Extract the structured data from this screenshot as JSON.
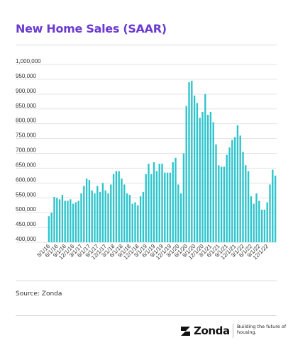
{
  "title": "New Home Sales (SAAR)",
  "source": "Source: Zonda",
  "brand": {
    "name": "Zonda",
    "tagline": "Building the future of housing."
  },
  "colors": {
    "title": "#6b3bd1",
    "bar": "#2ec4cc",
    "grid": "#e3e3e3",
    "axis_text": "#333333"
  },
  "chart_data": {
    "type": "bar",
    "ylim": [
      400000,
      1000000
    ],
    "yticks": [
      "1,000,000",
      "950,000",
      "900,000",
      "850,000",
      "800,000",
      "750,000",
      "700,000",
      "650,000",
      "600,000",
      "550,000",
      "500,000",
      "450,000",
      "400,000"
    ],
    "ytick_values": [
      1000000,
      950000,
      900000,
      850000,
      800000,
      750000,
      700000,
      650000,
      600000,
      550000,
      500000,
      450000,
      400000
    ],
    "grid": true,
    "xlabels": [
      "3/1/16",
      "6/1/16",
      "9/1/16",
      "12/1/16",
      "3/1/17",
      "6/1/17",
      "9/1/17",
      "12/1/17",
      "3/1/18",
      "6/1/18",
      "9/1/18",
      "12/1/18",
      "3/1/19",
      "6/1/19",
      "9/1/19",
      "12/1/19",
      "3/1/20",
      "6/1/20",
      "9/1/20",
      "12/1/20",
      "3/1/21",
      "6/1/21",
      "9/1/21",
      "12/1/21",
      "3/1/22",
      "6/1/22",
      "9/1/22",
      "12/1/22"
    ],
    "xlabel_indices": [
      0,
      3,
      6,
      9,
      12,
      15,
      18,
      21,
      24,
      27,
      30,
      33,
      36,
      39,
      42,
      45,
      48,
      51,
      54,
      57,
      60,
      63,
      66,
      69,
      72,
      75,
      78,
      81
    ],
    "values": [
      488000,
      500000,
      553000,
      550000,
      545000,
      560000,
      540000,
      540000,
      545000,
      530000,
      535000,
      540000,
      565000,
      590000,
      615000,
      610000,
      575000,
      565000,
      590000,
      570000,
      600000,
      575000,
      565000,
      595000,
      630000,
      640000,
      640000,
      615000,
      595000,
      565000,
      560000,
      530000,
      535000,
      525000,
      555000,
      570000,
      630000,
      665000,
      630000,
      670000,
      640000,
      665000,
      665000,
      635000,
      635000,
      635000,
      670000,
      685000,
      595000,
      565000,
      700000,
      860000,
      940000,
      945000,
      895000,
      870000,
      820000,
      840000,
      900000,
      830000,
      840000,
      805000,
      730000,
      660000,
      655000,
      655000,
      695000,
      720000,
      745000,
      755000,
      795000,
      760000,
      705000,
      660000,
      640000,
      555000,
      530000,
      565000,
      540000,
      510000,
      510000,
      535000,
      595000,
      645000,
      625000
    ]
  }
}
